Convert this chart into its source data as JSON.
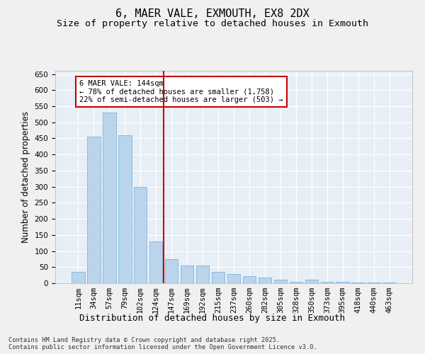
{
  "title1": "6, MAER VALE, EXMOUTH, EX8 2DX",
  "title2": "Size of property relative to detached houses in Exmouth",
  "xlabel": "Distribution of detached houses by size in Exmouth",
  "ylabel": "Number of detached properties",
  "categories": [
    "11sqm",
    "34sqm",
    "57sqm",
    "79sqm",
    "102sqm",
    "124sqm",
    "147sqm",
    "169sqm",
    "192sqm",
    "215sqm",
    "237sqm",
    "260sqm",
    "282sqm",
    "305sqm",
    "328sqm",
    "350sqm",
    "373sqm",
    "395sqm",
    "418sqm",
    "440sqm",
    "463sqm"
  ],
  "values": [
    35,
    455,
    530,
    460,
    300,
    130,
    75,
    55,
    55,
    35,
    28,
    22,
    17,
    12,
    5,
    10,
    4,
    5,
    3,
    2,
    2
  ],
  "bar_color": "#bad4ec",
  "bar_edge_color": "#6baed6",
  "bg_color": "#e8eef6",
  "grid_color": "#ffffff",
  "vline_x": 5.5,
  "vline_color": "#cc0000",
  "annotation_text": "6 MAER VALE: 144sqm\n← 78% of detached houses are smaller (1,758)\n22% of semi-detached houses are larger (503) →",
  "annotation_box_edgecolor": "#cc0000",
  "ylim_max": 660,
  "yticks": [
    0,
    50,
    100,
    150,
    200,
    250,
    300,
    350,
    400,
    450,
    500,
    550,
    600,
    650
  ],
  "footer1": "Contains HM Land Registry data © Crown copyright and database right 2025.",
  "footer2": "Contains public sector information licensed under the Open Government Licence v3.0.",
  "fig_facecolor": "#f0f0f0",
  "title_fontsize": 11,
  "subtitle_fontsize": 9.5,
  "ylabel_fontsize": 8.5,
  "xlabel_fontsize": 9,
  "tick_fontsize": 7.5,
  "footer_fontsize": 6.2
}
